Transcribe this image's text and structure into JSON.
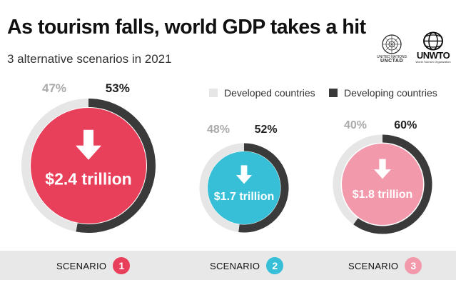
{
  "header": {
    "title": "As tourism falls, world GDP takes a hit",
    "subtitle": "3 alternative scenarios in 2021"
  },
  "logos": {
    "un": {
      "line1": "UNITED NATIONS",
      "line2": "UNCTAD"
    },
    "unwto": {
      "name": "UNWTO",
      "sub": "World Tourism Organization"
    }
  },
  "legend": [
    {
      "label": "Developed countries",
      "color": "#e6e6e6"
    },
    {
      "label": "Developing countries",
      "color": "#3a3a3a"
    }
  ],
  "colors": {
    "developed_ring": "#e6e6e6",
    "developing_ring": "#3a3a3a",
    "developed_pct_text": "#aaaaaa",
    "developing_pct_text": "#222222",
    "scenario_band": "#e8e8e8"
  },
  "chart_data": {
    "type": "pie",
    "categories": [
      "Developed countries",
      "Developing countries"
    ],
    "scenarios": [
      {
        "scenario": "1",
        "label": "SCENARIO",
        "gdp_loss": "$2.4 trillion",
        "gdp_loss_value": 2.4,
        "developed_pct": "47%",
        "developing_pct": "53%",
        "developed": 47,
        "developing": 53,
        "color": "#e8405b"
      },
      {
        "scenario": "2",
        "label": "SCENARIO",
        "gdp_loss": "$1.7 trillion",
        "gdp_loss_value": 1.7,
        "developed_pct": "48%",
        "developing_pct": "52%",
        "developed": 48,
        "developing": 52,
        "color": "#36bfd6"
      },
      {
        "scenario": "3",
        "label": "SCENARIO",
        "gdp_loss": "$1.8 trillion",
        "gdp_loss_value": 1.8,
        "developed_pct": "40%",
        "developing_pct": "60%",
        "developed": 40,
        "developing": 60,
        "color": "#f29aab"
      }
    ]
  }
}
